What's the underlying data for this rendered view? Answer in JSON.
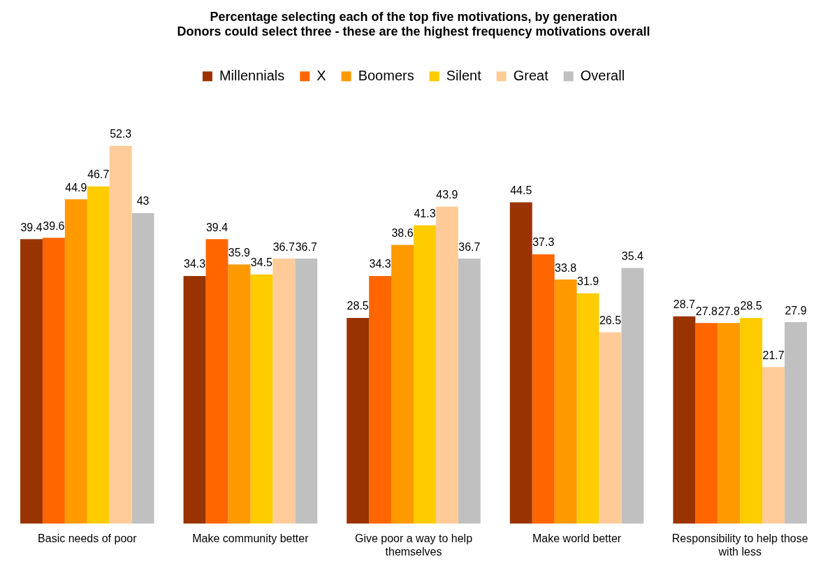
{
  "chart_data": {
    "type": "bar",
    "title": "Percentage selecting each of the top five motivations, by generation\nDonors could select three - these are the highest frequency motivations overall",
    "categories": [
      "Basic needs of poor",
      "Make community better",
      "Give poor a way to help themselves",
      "Make world better",
      "Responsibility to help those with less"
    ],
    "series": [
      {
        "name": "Millennials",
        "color": "#993300",
        "values": [
          39.4,
          34.3,
          28.5,
          44.5,
          28.7
        ]
      },
      {
        "name": "X",
        "color": "#ff6600",
        "values": [
          39.6,
          39.4,
          34.3,
          37.3,
          27.8
        ]
      },
      {
        "name": "Boomers",
        "color": "#ff9900",
        "values": [
          44.9,
          35.9,
          38.6,
          33.8,
          27.8
        ]
      },
      {
        "name": "Silent",
        "color": "#ffcc00",
        "values": [
          46.7,
          34.5,
          41.3,
          31.9,
          28.5
        ]
      },
      {
        "name": "Great",
        "color": "#ffcc99",
        "values": [
          52.3,
          36.7,
          43.9,
          26.5,
          21.7
        ]
      },
      {
        "name": "Overall",
        "color": "#c0c0c0",
        "values": [
          43,
          36.7,
          36.7,
          35.4,
          27.9
        ]
      }
    ],
    "data_labels": true,
    "legend": "top",
    "grid": false
  }
}
